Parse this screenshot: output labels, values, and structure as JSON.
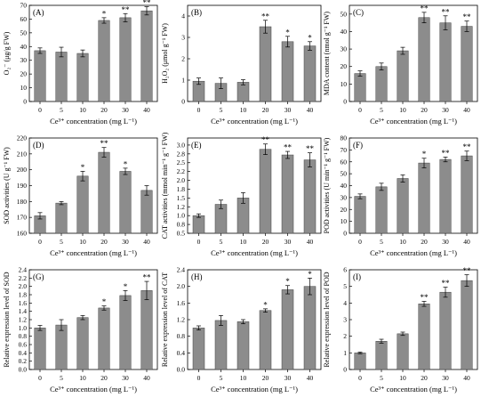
{
  "chart_data": [
    {
      "type": "bar",
      "panel": "(A)",
      "ylabel": "O₂⁻ (μg/g FW)",
      "xlabel": "Ce³⁺ concentration (mg L⁻¹)",
      "categories": [
        "0",
        "5",
        "10",
        "20",
        "30",
        "40"
      ],
      "values": [
        37,
        36,
        35,
        59,
        61,
        66
      ],
      "errors": [
        2,
        3.5,
        2.5,
        2,
        3,
        3
      ],
      "sig": [
        "",
        "",
        "",
        "*",
        "**",
        "**"
      ],
      "ylim": [
        0,
        70
      ],
      "yticks": [
        "0",
        "10",
        "20",
        "30",
        "40",
        "50",
        "60",
        "70"
      ]
    },
    {
      "type": "bar",
      "panel": "(B)",
      "ylabel": "H₂O₂ (μmol g⁻¹ FW)",
      "xlabel": "Ce³⁺ concentration (mg L⁻¹)",
      "categories": [
        "0",
        "5",
        "10",
        "20",
        "30",
        "40"
      ],
      "values": [
        0.95,
        0.85,
        0.9,
        3.5,
        2.8,
        2.6
      ],
      "errors": [
        0.15,
        0.25,
        0.12,
        0.3,
        0.25,
        0.2
      ],
      "sig": [
        "",
        "",
        "",
        "**",
        "*",
        "*"
      ],
      "ylim": [
        0,
        4.5
      ],
      "yticks": [
        "0",
        "1",
        "2",
        "3",
        "4"
      ]
    },
    {
      "type": "bar",
      "panel": "(C)",
      "ylabel": "MDA content (nmol g⁻¹ FW)",
      "xlabel": "Ce³⁺ concentration (mg L⁻¹)",
      "categories": [
        "0",
        "5",
        "10",
        "20",
        "30",
        "40"
      ],
      "values": [
        16,
        20,
        29,
        48,
        45,
        43
      ],
      "errors": [
        1.5,
        2,
        2,
        3,
        4,
        3
      ],
      "sig": [
        "",
        "",
        "",
        "**",
        "**",
        "**"
      ],
      "ylim": [
        0,
        55
      ],
      "yticks": [
        "0",
        "10",
        "20",
        "30",
        "40",
        "50"
      ]
    },
    {
      "type": "bar",
      "panel": "(D)",
      "ylabel": "SOD activities (U g⁻¹ FW)",
      "xlabel": "Ce³⁺ concentration (mg L⁻¹)",
      "categories": [
        "0",
        "5",
        "10",
        "20",
        "30",
        "40"
      ],
      "values": [
        171,
        179,
        196,
        211,
        199,
        187
      ],
      "errors": [
        2,
        1,
        3,
        3,
        2,
        3
      ],
      "sig": [
        "",
        "",
        "*",
        "**",
        "*",
        ""
      ],
      "ylim": [
        160,
        220
      ],
      "yticks": [
        "160",
        "170",
        "180",
        "190",
        "200",
        "210",
        "220"
      ]
    },
    {
      "type": "bar",
      "panel": "(E)",
      "ylabel": "CAT activities (mmol min⁻¹ g⁻¹ FW)",
      "xlabel": "Ce³⁺ concentration (mg L⁻¹)",
      "categories": [
        "0",
        "5",
        "10",
        "20",
        "30",
        "40"
      ],
      "values": [
        1.0,
        1.32,
        1.5,
        2.88,
        2.72,
        2.58
      ],
      "errors": [
        0.05,
        0.12,
        0.15,
        0.15,
        0.1,
        0.2
      ],
      "sig": [
        "",
        "",
        "",
        "**",
        "**",
        "**"
      ],
      "ylim": [
        0.5,
        3.2
      ],
      "yticks": [
        "0.5",
        "0.8",
        "1.0",
        "1.2",
        "1.5",
        "1.8",
        "2.0",
        "2.2",
        "2.5",
        "2.8",
        "3.0"
      ],
      "ytick_values": [
        0.5,
        0.75,
        1.0,
        1.25,
        1.5,
        1.75,
        2.0,
        2.25,
        2.5,
        2.75,
        3.0
      ]
    },
    {
      "type": "bar",
      "panel": "(F)",
      "ylabel": "POD activities (U min⁻¹ g⁻¹ FW)",
      "xlabel": "Ce³⁺ concentration (mg L⁻¹)",
      "categories": [
        "0",
        "5",
        "10",
        "20",
        "30",
        "40"
      ],
      "values": [
        31,
        39,
        46,
        59,
        62,
        65
      ],
      "errors": [
        2,
        3,
        3,
        4,
        2,
        4
      ],
      "sig": [
        "",
        "",
        "",
        "*",
        "**",
        "**"
      ],
      "ylim": [
        0,
        80
      ],
      "yticks": [
        "0",
        "10",
        "20",
        "30",
        "40",
        "50",
        "60",
        "70",
        "80"
      ]
    },
    {
      "type": "bar",
      "panel": "(G)",
      "ylabel": "Relative expression level of SOD",
      "xlabel": "Ce³⁺ concentration (mg L⁻¹)",
      "categories": [
        "0",
        "5",
        "10",
        "20",
        "30",
        "40"
      ],
      "values": [
        1.0,
        1.07,
        1.25,
        1.48,
        1.78,
        1.9
      ],
      "errors": [
        0.06,
        0.13,
        0.05,
        0.05,
        0.12,
        0.22
      ],
      "sig": [
        "",
        "",
        "",
        "*",
        "*",
        "**"
      ],
      "ylim": [
        0,
        2.4
      ],
      "yticks": [
        "0.0",
        "0.2",
        "0.4",
        "0.6",
        "0.8",
        "1.0",
        "1.2",
        "1.4",
        "1.6",
        "1.8",
        "2.0",
        "2.2",
        "2.4"
      ]
    },
    {
      "type": "bar",
      "panel": "(H)",
      "ylabel": "Relative expression level of CAT",
      "xlabel": "Ce³⁺ concentration (mg L⁻¹)",
      "categories": [
        "0",
        "5",
        "10",
        "20",
        "30",
        "40"
      ],
      "values": [
        1.0,
        1.18,
        1.15,
        1.42,
        1.92,
        2.0
      ],
      "errors": [
        0.05,
        0.12,
        0.05,
        0.04,
        0.1,
        0.2
      ],
      "sig": [
        "",
        "",
        "",
        "*",
        "*",
        "*"
      ],
      "ylim": [
        0,
        2.4
      ],
      "yticks": [
        "0.0",
        "0.4",
        "0.8",
        "1.2",
        "1.6",
        "2.0",
        "2.4"
      ]
    },
    {
      "type": "bar",
      "panel": "(I)",
      "ylabel": "Relative expression level of POD",
      "xlabel": "Ce³⁺ concentration (mg L⁻¹)",
      "categories": [
        "0",
        "5",
        "10",
        "20",
        "30",
        "40"
      ],
      "values": [
        1.0,
        1.7,
        2.15,
        3.95,
        4.65,
        5.35
      ],
      "errors": [
        0.05,
        0.12,
        0.1,
        0.15,
        0.3,
        0.35
      ],
      "sig": [
        "",
        "",
        "",
        "**",
        "**",
        "**"
      ],
      "ylim": [
        0,
        6
      ],
      "yticks": [
        "0",
        "1",
        "2",
        "3",
        "4",
        "5",
        "6"
      ]
    }
  ]
}
